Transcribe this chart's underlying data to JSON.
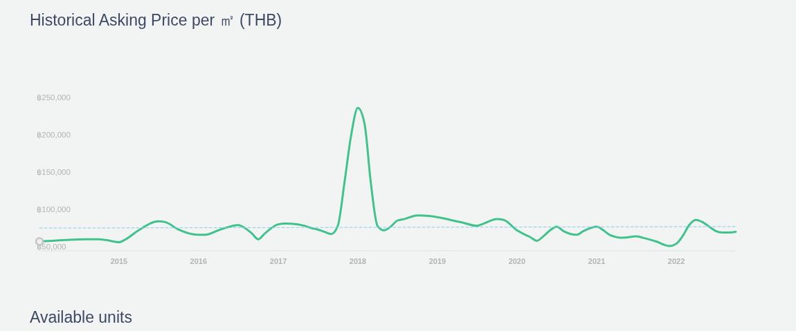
{
  "chart_data": {
    "type": "line",
    "title": "Historical Asking Price per ㎡ (THB)",
    "annotations": [
      "Available units"
    ],
    "xlim": [
      "2014-01",
      "2022-10"
    ],
    "xticks": [
      "2015",
      "2016",
      "2017",
      "2018",
      "2019",
      "2020",
      "2021",
      "2022"
    ],
    "ylim": [
      44500,
      250000
    ],
    "yticks": [
      {
        "value": 50000,
        "label": "฿50,000"
      },
      {
        "value": 100000,
        "label": "฿100,000"
      },
      {
        "value": 150000,
        "label": "฿150,000"
      },
      {
        "value": 200000,
        "label": "฿200,000"
      },
      {
        "value": 250000,
        "label": "฿250,000"
      }
    ],
    "series": [
      {
        "color": "#3fc28c",
        "x": [
          "2014-01",
          "2014-03",
          "2014-05",
          "2014-08",
          "2014-10",
          "2014-11",
          "2015-01",
          "2015-02",
          "2015-04",
          "2015-07",
          "2015-08",
          "2015-10",
          "2015-12",
          "2016-01",
          "2016-02",
          "2016-04",
          "2016-05",
          "2016-07",
          "2016-08",
          "2016-09",
          "2016-10",
          "2016-11",
          "2017-01",
          "2017-02",
          "2017-04",
          "2017-05",
          "2017-06",
          "2017-07",
          "2017-08",
          "2017-09",
          "2017-10",
          "2017-11",
          "2017-12",
          "2018-01",
          "2018-02",
          "2018-03",
          "2018-04",
          "2018-05",
          "2018-06",
          "2018-07",
          "2018-08",
          "2018-10",
          "2018-12",
          "2019-03",
          "2019-05",
          "2019-07",
          "2019-08",
          "2019-10",
          "2019-11",
          "2020-01",
          "2020-02",
          "2020-03",
          "2020-04",
          "2020-05",
          "2020-06",
          "2020-07",
          "2020-08",
          "2020-10",
          "2020-11",
          "2021-01",
          "2021-02",
          "2021-03",
          "2021-05",
          "2021-07",
          "2021-08",
          "2021-10",
          "2021-12",
          "2022-01",
          "2022-02",
          "2022-03",
          "2022-04",
          "2022-05",
          "2022-06",
          "2022-07",
          "2022-08",
          "2022-09",
          "2022-10"
        ],
        "values": [
          57000,
          58000,
          59000,
          60000,
          60000,
          59000,
          56000,
          60000,
          72000,
          84000,
          83000,
          73000,
          67000,
          66000,
          66000,
          72000,
          75000,
          79000,
          75000,
          68000,
          60000,
          68000,
          80000,
          81000,
          80000,
          78000,
          75000,
          73000,
          70000,
          67000,
          78000,
          137000,
          199000,
          236000,
          214000,
          137000,
          78000,
          72000,
          77000,
          85000,
          87000,
          92000,
          91000,
          86000,
          82000,
          78000,
          81000,
          87000,
          86000,
          72000,
          67000,
          63000,
          58000,
          64000,
          72000,
          77000,
          71000,
          66000,
          71000,
          77000,
          72000,
          66000,
          62000,
          64000,
          62000,
          57000,
          51000,
          54000,
          65000,
          79000,
          86000,
          83000,
          77000,
          71000,
          69000,
          69000,
          70000
        ]
      },
      {
        "type": "line",
        "color": "#8ccbe6",
        "line_style": "dashed",
        "x": [
          "2014-01",
          "2022-10"
        ],
        "values": [
          75000,
          77000
        ]
      },
      {
        "type": "scatter",
        "color": "#c4c4c4",
        "marker": "circle",
        "x": [
          "2014-01"
        ],
        "values": [
          57000
        ]
      }
    ]
  }
}
